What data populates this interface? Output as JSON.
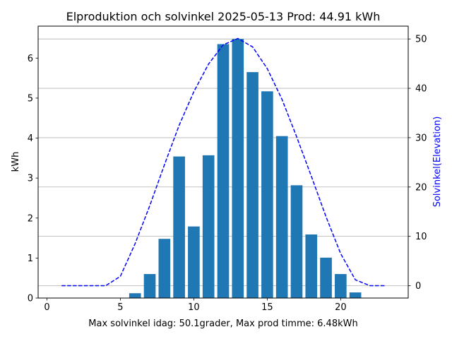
{
  "chart_data": {
    "type": "bar",
    "title": "Elproduktion och solvinkel 2025-05-13 Prod: 44.91 kWh",
    "xlabel": "Max solvinkel idag: 50.1grader, Max prod timme: 6.48kWh",
    "ylabel": "kWh",
    "y2label": "Solvinkel(Elevation)",
    "xlim": [
      -0.6,
      24.6
    ],
    "ylim": [
      0,
      6.8
    ],
    "y2lim": [
      -2.5,
      52.6
    ],
    "xticks": [
      0,
      5,
      10,
      15,
      20
    ],
    "yticks": [
      0,
      1,
      2,
      3,
      4,
      5,
      6
    ],
    "y2ticks": [
      0,
      10,
      20,
      30,
      40,
      50
    ],
    "grid": "right axis horizontal",
    "colors": {
      "bars": "#1f77b4",
      "line": "#0000ff",
      "y2label": "#0000ff"
    },
    "series": [
      {
        "name": "kWh",
        "kind": "bar",
        "x": [
          6,
          7,
          8,
          9,
          10,
          11,
          12,
          13,
          14,
          15,
          16,
          17,
          18,
          19,
          20,
          21
        ],
        "values": [
          0.12,
          0.6,
          1.48,
          3.54,
          1.79,
          3.57,
          6.35,
          6.48,
          5.65,
          5.17,
          4.05,
          2.82,
          1.59,
          1.01,
          0.6,
          0.14
        ]
      },
      {
        "name": "Solvinkel(Elevation)",
        "kind": "line",
        "style": "dashed",
        "x": [
          1,
          2,
          3,
          4,
          5,
          6,
          7,
          8,
          9,
          10,
          11,
          12,
          13,
          14,
          15,
          16,
          17,
          18,
          19,
          20,
          21,
          22,
          23
        ],
        "values": [
          0,
          0,
          0,
          0,
          1.9,
          8.5,
          16.2,
          24.5,
          32.5,
          39.3,
          44.9,
          48.8,
          50.1,
          48.4,
          44.0,
          37.8,
          30.2,
          22.2,
          14.0,
          6.5,
          1.2,
          0,
          0
        ]
      }
    ]
  }
}
